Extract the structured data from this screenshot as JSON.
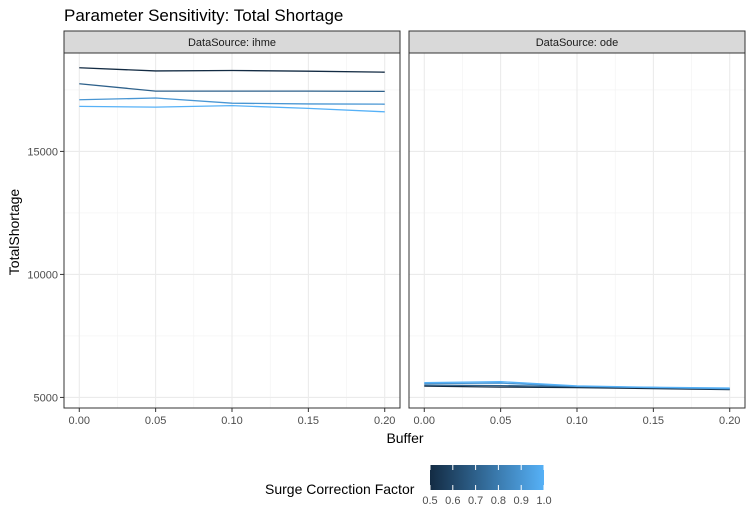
{
  "chart_data": {
    "type": "line",
    "title": "Parameter Sensitivity: Total Shortage",
    "xlabel": "Buffer",
    "ylabel": "TotalShortage",
    "x_ticks": [
      0.0,
      0.05,
      0.1,
      0.15,
      0.2
    ],
    "x_tick_labels": [
      "0.00",
      "0.05",
      "0.10",
      "0.15",
      "0.20"
    ],
    "xlim": [
      -0.01,
      0.21
    ],
    "y_ticks": [
      5000,
      10000,
      15000
    ],
    "y_tick_labels": [
      "5000",
      "10000",
      "15000"
    ],
    "ylim": [
      4570,
      19000
    ],
    "grid": true,
    "legend": {
      "title": "Surge Correction Factor",
      "type": "colorbar",
      "placement": "bottom",
      "min": 0.5,
      "max": 1.0,
      "tick_labels": [
        "0.5",
        "0.6",
        "0.7",
        "0.8",
        "0.9",
        "1.0"
      ],
      "low_color": "#132B43",
      "high_color": "#56B1F7"
    },
    "panels": [
      {
        "strip_label": "DataSource: ihme",
        "series": [
          {
            "color_value": 0.5,
            "x": [
              0.0,
              0.05,
              0.1,
              0.15,
              0.2
            ],
            "y": [
              18400,
              18270,
              18290,
              18260,
              18220
            ]
          },
          {
            "color_value": 0.7,
            "x": [
              0.0,
              0.05,
              0.1,
              0.15,
              0.2
            ],
            "y": [
              17750,
              17450,
              17450,
              17450,
              17440
            ]
          },
          {
            "color_value": 0.9,
            "x": [
              0.0,
              0.05,
              0.1,
              0.15,
              0.2
            ],
            "y": [
              17100,
              17170,
              16960,
              16930,
              16920
            ]
          },
          {
            "color_value": 1.0,
            "x": [
              0.0,
              0.05,
              0.1,
              0.15,
              0.2
            ],
            "y": [
              16830,
              16800,
              16860,
              16750,
              16610
            ]
          }
        ]
      },
      {
        "strip_label": "DataSource: ode",
        "series": [
          {
            "color_value": 0.5,
            "x": [
              0.0,
              0.05,
              0.1,
              0.15,
              0.2
            ],
            "y": [
              5460,
              5420,
              5400,
              5360,
              5320
            ]
          },
          {
            "color_value": 0.7,
            "x": [
              0.0,
              0.05,
              0.1,
              0.15,
              0.2
            ],
            "y": [
              5500,
              5480,
              5440,
              5400,
              5340
            ]
          },
          {
            "color_value": 0.9,
            "x": [
              0.0,
              0.05,
              0.1,
              0.15,
              0.2
            ],
            "y": [
              5560,
              5580,
              5450,
              5400,
              5360
            ]
          },
          {
            "color_value": 1.0,
            "x": [
              0.0,
              0.05,
              0.1,
              0.15,
              0.2
            ],
            "y": [
              5600,
              5640,
              5470,
              5410,
              5380
            ]
          }
        ]
      }
    ]
  }
}
